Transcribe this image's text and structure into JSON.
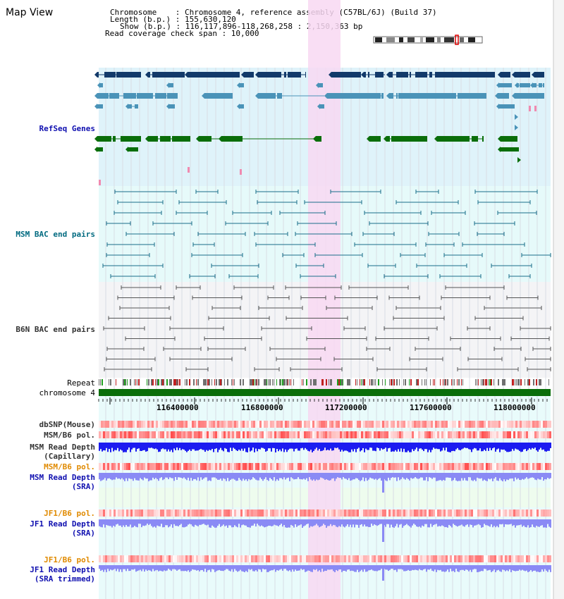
{
  "header": {
    "view_title": "Map View",
    "chromosome_line": "Chromosome    : Chromosome 4, reference assembly (C57BL/6J) (Build 37)",
    "length_line": "Length (b.p.) : 155,630,120",
    "show_line": "Show (b.p.) : 116,117,896-118,268,258 : 2,150,363 bp",
    "span_line": "Read coverage check span : 10,000"
  },
  "tracks": {
    "refseq": "RefSeq Genes",
    "msm_bac": "MSM BAC end pairs",
    "b6n_bac": "B6N BAC end pairs",
    "repeat": "Repeat",
    "chromosome": "chromosome 4",
    "dbsnp": "dbSNP(Mouse)",
    "msm_b6_pol_1": "MSM/B6 pol.",
    "msm_read_depth_cap_1": "MSM Read Depth",
    "msm_read_depth_cap_2": "(Capillary)",
    "msm_b6_pol_2": "MSM/B6 pol.",
    "msm_read_depth_sra_1": "MSM Read Depth",
    "msm_read_depth_sra_2": "(SRA)",
    "jf1_b6_pol_1": "JF1/B6 pol.",
    "jf1_read_depth_sra_1": "JF1 Read Depth",
    "jf1_read_depth_sra_2": "(SRA)",
    "jf1_b6_pol_2": "JF1/B6 pol.",
    "jf1_read_depth_trim_1": "JF1 Read Depth",
    "jf1_read_depth_trim_2": "(SRA trimmed)"
  },
  "ruler": {
    "ticks": [
      "116400000",
      "116800000",
      "117200000",
      "117600000",
      "118000000"
    ]
  },
  "colors": {
    "refseq_bg": "#dff3fa",
    "msm_bg": "#e6fafa",
    "b6n_bg": "#f4f4f6",
    "highlight": "#f8d8f2",
    "refseq_dark": "#123a6a",
    "refseq_mid": "#4a93b8",
    "refseq_green": "#0a6e0a",
    "msm_pair": "#1a6f8a",
    "b6n_pair": "#555555",
    "chromosome_bar": "#0a6e0a",
    "depth_blue": "#1c1cf0",
    "depth_light": "#8a8af5",
    "pol_red": "#e03030",
    "label_blue": "#1010b0",
    "label_teal": "#006a80",
    "label_orange": "#e08a00",
    "label_gray": "#333333"
  }
}
